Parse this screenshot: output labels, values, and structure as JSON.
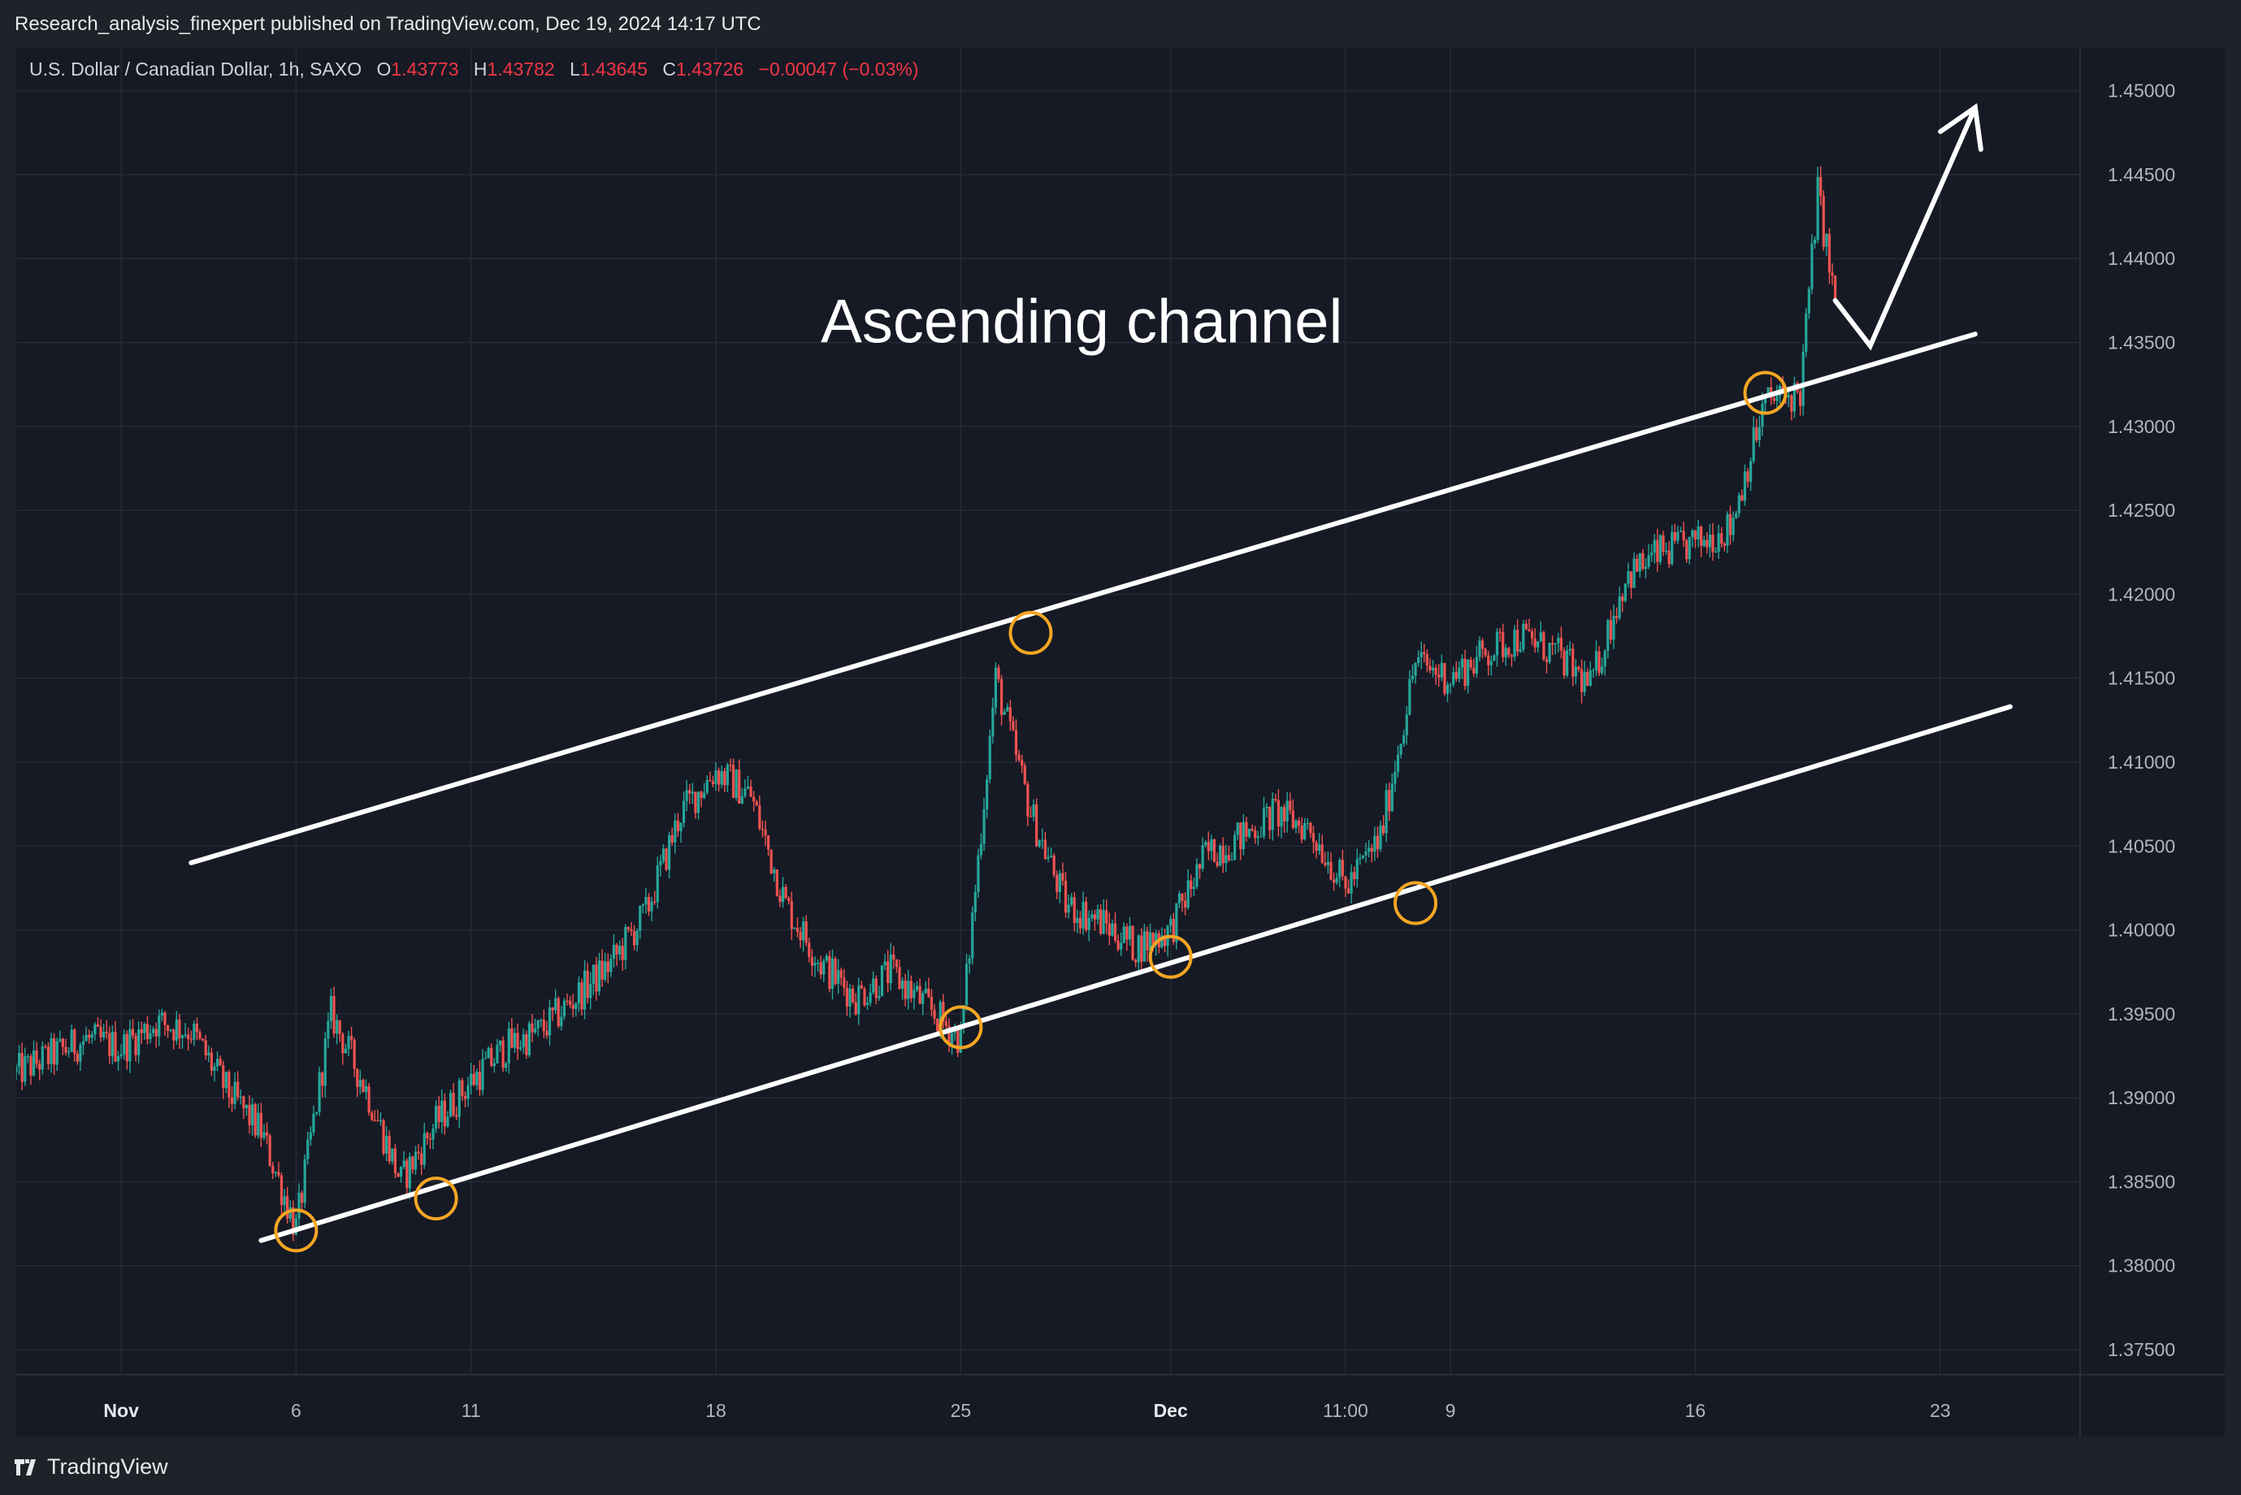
{
  "header": {
    "published": "Research_analysis_finexpert published on TradingView.com, Dec 19, 2024 14:17 UTC"
  },
  "legend": {
    "symbol": "U.S. Dollar / Canadian Dollar, 1h, SAXO",
    "open_label": "O",
    "open": "1.43773",
    "high_label": "H",
    "high": "1.43782",
    "low_label": "L",
    "low": "1.43645",
    "close_label": "C",
    "close": "1.43726",
    "change": "−0.00047 (−0.03%)"
  },
  "footer": {
    "brand": "TradingView"
  },
  "colors": {
    "background": "#161a25",
    "up": "#26a69a",
    "down": "#ef5350",
    "channel": "#ffffff",
    "touch_marker": "#f5a623",
    "grid": "#242a36",
    "axis_text": "#b2b5be"
  },
  "chart_data": {
    "type": "candlestick",
    "title": "U.S. Dollar / Canadian Dollar, 1h, SAXO",
    "annotation": "Ascending channel",
    "y_ticks": [
      "1.45000",
      "1.44500",
      "1.44000",
      "1.43500",
      "1.43000",
      "1.42500",
      "1.42000",
      "1.41500",
      "1.41000",
      "1.40500",
      "1.40000",
      "1.39500",
      "1.39000",
      "1.38500",
      "1.38000",
      "1.37500"
    ],
    "ylim": [
      1.3735,
      1.4525
    ],
    "x_ticks": [
      "Nov",
      "6",
      "11",
      "18",
      "25",
      "Dec",
      "11:00",
      "9",
      "16",
      "23"
    ],
    "x_tick_dates": [
      "2024-11-01",
      "2024-11-06",
      "2024-11-11",
      "2024-11-18",
      "2024-11-25",
      "2024-12-01",
      "2024-12-06",
      "2024-12-09",
      "2024-12-16",
      "2024-12-23"
    ],
    "xlim": [
      "2024-10-29",
      "2024-12-27"
    ],
    "grid": true,
    "price_path": [
      [
        "2024-10-29",
        1.3915
      ],
      [
        "2024-10-30",
        1.3925
      ],
      [
        "2024-10-31",
        1.3935
      ],
      [
        "2024-11-01",
        1.393
      ],
      [
        "2024-11-02",
        1.3945
      ],
      [
        "2024-11-03",
        1.394
      ],
      [
        "2024-11-04",
        1.3905
      ],
      [
        "2024-11-05",
        1.388
      ],
      [
        "2024-11-06",
        1.3822
      ],
      [
        "2024-11-07",
        1.395
      ],
      [
        "2024-11-08",
        1.3905
      ],
      [
        "2024-11-09",
        1.385
      ],
      [
        "2024-11-10",
        1.3885
      ],
      [
        "2024-11-11",
        1.391
      ],
      [
        "2024-11-12",
        1.393
      ],
      [
        "2024-11-13",
        1.394
      ],
      [
        "2024-11-14",
        1.396
      ],
      [
        "2024-11-15",
        1.398
      ],
      [
        "2024-11-16",
        1.401
      ],
      [
        "2024-11-17",
        1.407
      ],
      [
        "2024-11-18",
        1.4095
      ],
      [
        "2024-11-19",
        1.408
      ],
      [
        "2024-11-20",
        1.4015
      ],
      [
        "2024-11-21",
        1.398
      ],
      [
        "2024-11-22",
        1.396
      ],
      [
        "2024-11-23",
        1.3975
      ],
      [
        "2024-11-24",
        1.3955
      ],
      [
        "2024-11-25",
        1.3935
      ],
      [
        "2024-11-26",
        1.415
      ],
      [
        "2024-11-27",
        1.407
      ],
      [
        "2024-11-28",
        1.4015
      ],
      [
        "2024-11-29",
        1.4005
      ],
      [
        "2024-11-30",
        1.399
      ],
      [
        "2024-12-01",
        1.4
      ],
      [
        "2024-12-02",
        1.4045
      ],
      [
        "2024-12-03",
        1.4055
      ],
      [
        "2024-12-04",
        1.407
      ],
      [
        "2024-12-05",
        1.406
      ],
      [
        "2024-12-06",
        1.4025
      ],
      [
        "2024-12-07",
        1.4055
      ],
      [
        "2024-12-08",
        1.416
      ],
      [
        "2024-12-09",
        1.415
      ],
      [
        "2024-12-10",
        1.4165
      ],
      [
        "2024-12-11",
        1.4175
      ],
      [
        "2024-12-12",
        1.4165
      ],
      [
        "2024-12-13",
        1.4145
      ],
      [
        "2024-12-14",
        1.421
      ],
      [
        "2024-12-15",
        1.4225
      ],
      [
        "2024-12-16",
        1.423
      ],
      [
        "2024-12-17",
        1.424
      ],
      [
        "2024-12-18",
        1.4315
      ],
      [
        "2024-12-19",
        1.432
      ],
      [
        "2024-12-19T12:00",
        1.444
      ],
      [
        "2024-12-20",
        1.4373
      ]
    ],
    "channel_lines": [
      {
        "name": "upper",
        "from": [
          "2024-11-03",
          1.404
        ],
        "to": [
          "2024-12-24",
          1.4355
        ]
      },
      {
        "name": "lower",
        "from": [
          "2024-11-05",
          1.3815
        ],
        "to": [
          "2024-12-25",
          1.4133
        ]
      }
    ],
    "touch_points": [
      [
        "2024-11-06",
        1.3821
      ],
      [
        "2024-11-10",
        1.384
      ],
      [
        "2024-11-25",
        1.3942
      ],
      [
        "2024-11-27",
        1.4177
      ],
      [
        "2024-12-01",
        1.3984
      ],
      [
        "2024-12-08",
        1.4016
      ],
      [
        "2024-12-18",
        1.432
      ]
    ],
    "projection_arrow": [
      [
        "2024-12-20",
        1.4375
      ],
      [
        "2024-12-21",
        1.4348
      ],
      [
        "2024-12-24",
        1.449
      ]
    ]
  }
}
